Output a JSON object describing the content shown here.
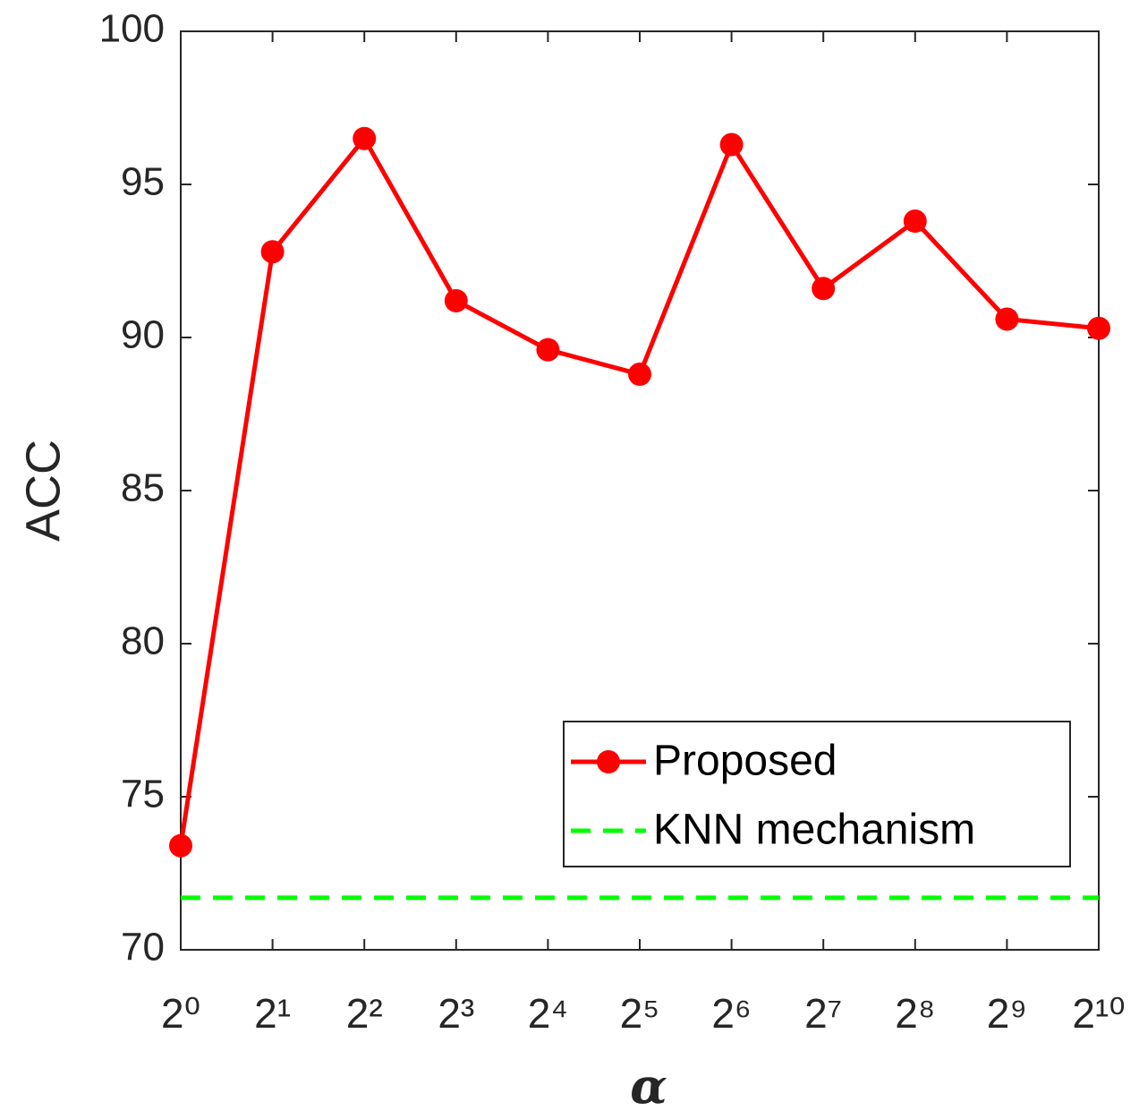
{
  "chart_data": {
    "type": "line",
    "x_label": "α",
    "y_label": "ACC",
    "categories": [
      "2⁰",
      "2¹",
      "2²",
      "2³",
      "2⁴",
      "2⁵",
      "2⁶",
      "2⁷",
      "2⁸",
      "2⁹",
      "2¹⁰"
    ],
    "series": [
      {
        "name": "Proposed",
        "color": "#ff0000",
        "marker": "circle",
        "values": [
          73.4,
          92.8,
          96.5,
          91.2,
          89.6,
          88.8,
          96.3,
          91.6,
          93.8,
          90.6,
          90.3
        ]
      },
      {
        "name": "KNN mechanism",
        "color": "#00ff00",
        "style": "dashed",
        "value": 71.7
      }
    ],
    "ylim": [
      70,
      100
    ],
    "yticks": [
      70,
      75,
      80,
      85,
      90,
      95,
      100
    ],
    "legend": "lower right",
    "grid": false
  }
}
